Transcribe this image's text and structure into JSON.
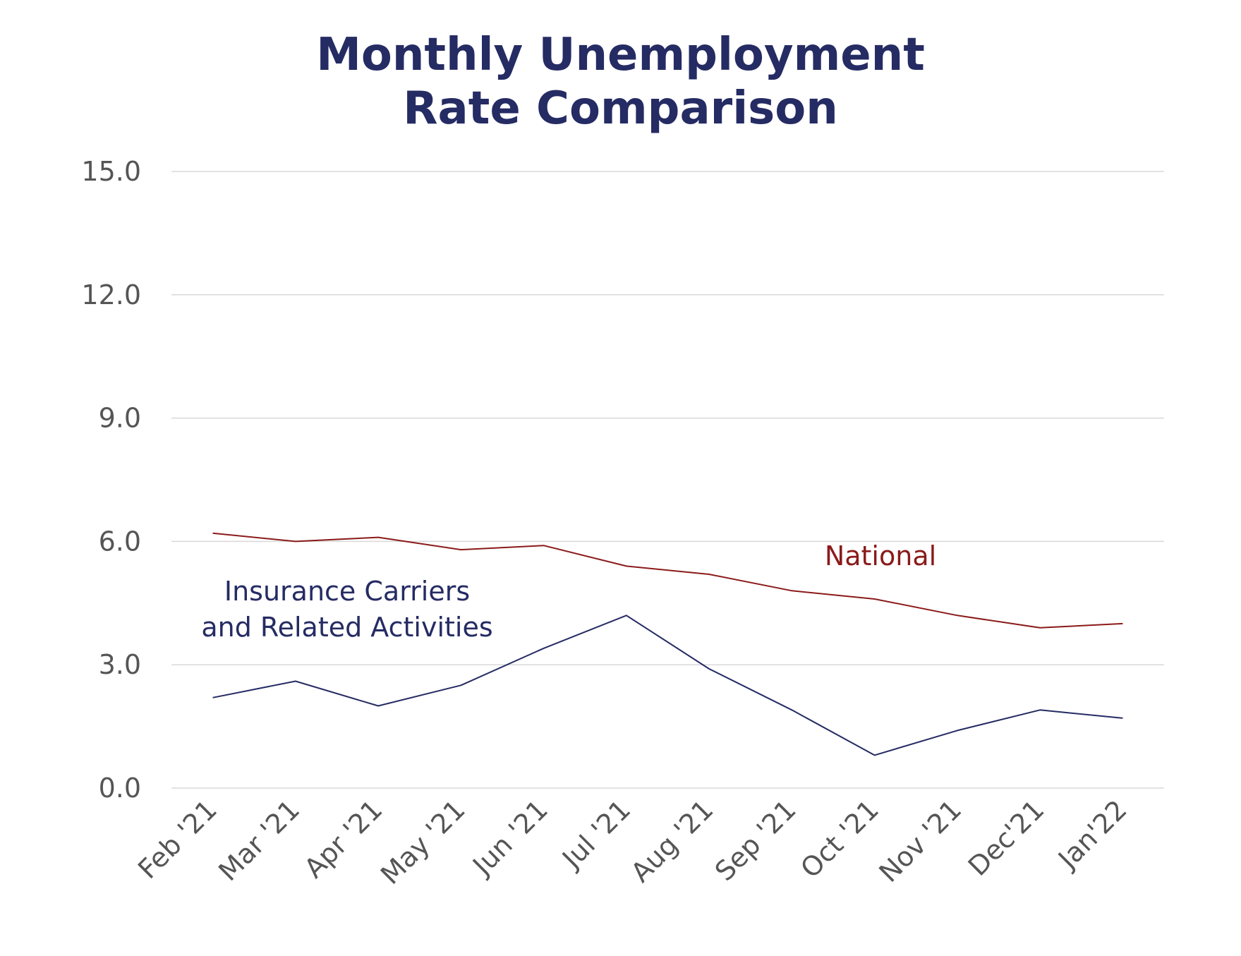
{
  "chart_data": {
    "type": "line",
    "title_lines": [
      "Monthly Unemployment",
      "Rate Comparison"
    ],
    "categories": [
      "Feb '21",
      "Mar '21",
      "Apr '21",
      "May '21",
      "Jun '21",
      "Jul '21",
      "Aug '21",
      "Sep '21",
      "Oct '21",
      "Nov '21",
      "Dec'21",
      "Jan'22"
    ],
    "ylim": [
      0,
      15
    ],
    "yticks": [
      "0.0",
      "3.0",
      "6.0",
      "9.0",
      "12.0",
      "15.0"
    ],
    "grid": true,
    "series": [
      {
        "key": "national",
        "name": "National",
        "color": "#8b1a1a",
        "values": [
          6.2,
          6.0,
          6.1,
          5.8,
          5.9,
          5.4,
          5.2,
          4.8,
          4.6,
          4.2,
          3.9,
          4.0
        ]
      },
      {
        "key": "insurance",
        "name_lines": [
          "Insurance Carriers",
          "and Related Activities"
        ],
        "color": "#252b63",
        "values": [
          2.2,
          2.6,
          2.0,
          2.5,
          3.4,
          4.2,
          2.9,
          1.9,
          0.8,
          1.4,
          1.9,
          1.7
        ]
      }
    ]
  }
}
